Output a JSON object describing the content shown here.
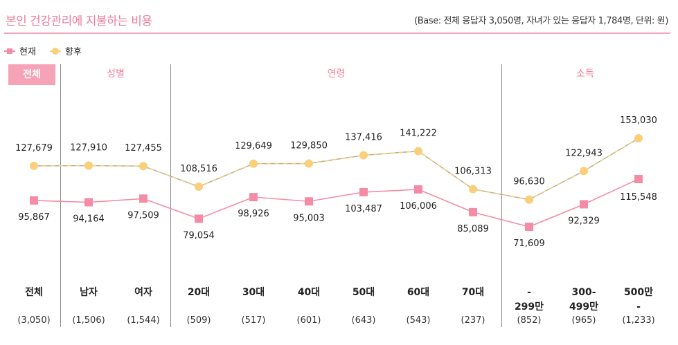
{
  "header": {
    "title": "본인 건강관리에 지불하는 비용",
    "base_note": "(Base: 전체 응답자 3,050명, 자녀가 있는 응답자 1,784명, 단위: 원)"
  },
  "groups": {
    "total": "전체",
    "gender": "성별",
    "age": "연령",
    "income": "소득"
  },
  "colors": {
    "current": "#f48ca6",
    "future": "#f9cf7a",
    "future_line": "#b8b0a0",
    "accent": "#ec7d9a"
  },
  "chart_data": {
    "type": "line",
    "title": "본인 건강관리에 지불하는 비용",
    "unit": "원",
    "categories": [
      "전체",
      "남자",
      "여자",
      "20대",
      "30대",
      "40대",
      "50대",
      "60대",
      "70대",
      "-\n299만",
      "300-\n499만",
      "500만\n-"
    ],
    "category_lines": [
      [
        "전체"
      ],
      [
        "남자"
      ],
      [
        "여자"
      ],
      [
        "20대"
      ],
      [
        "30대"
      ],
      [
        "40대"
      ],
      [
        "50대"
      ],
      [
        "60대"
      ],
      [
        "70대"
      ],
      [
        "-",
        "299만"
      ],
      [
        "300-",
        "499만"
      ],
      [
        "500만",
        "-"
      ]
    ],
    "sample_sizes": [
      "(3,050)",
      "(1,506)",
      "(1,544)",
      "(509)",
      "(517)",
      "(601)",
      "(643)",
      "(543)",
      "(237)",
      "(852)",
      "(965)",
      "(1,233)"
    ],
    "legend_position": "top-left",
    "grid": false,
    "series": [
      {
        "name": "현재",
        "marker": "square",
        "values": [
          95867,
          94164,
          97509,
          79054,
          98926,
          95003,
          103487,
          106006,
          85089,
          71609,
          92329,
          115548
        ],
        "labels": [
          "95,867",
          "94,164",
          "97,509",
          "79,054",
          "98,926",
          "95,003",
          "103,487",
          "106,006",
          "85,089",
          "71,609",
          "92,329",
          "115,548"
        ]
      },
      {
        "name": "향후",
        "marker": "circle",
        "values": [
          127679,
          127910,
          127455,
          108516,
          129649,
          129850,
          137416,
          141222,
          106313,
          96630,
          122943,
          153030
        ],
        "labels": [
          "127,679",
          "127,910",
          "127,455",
          "108,516",
          "129,649",
          "129,850",
          "137,416",
          "141,222",
          "106,313",
          "96,630",
          "122,943",
          "153,030"
        ]
      }
    ]
  }
}
